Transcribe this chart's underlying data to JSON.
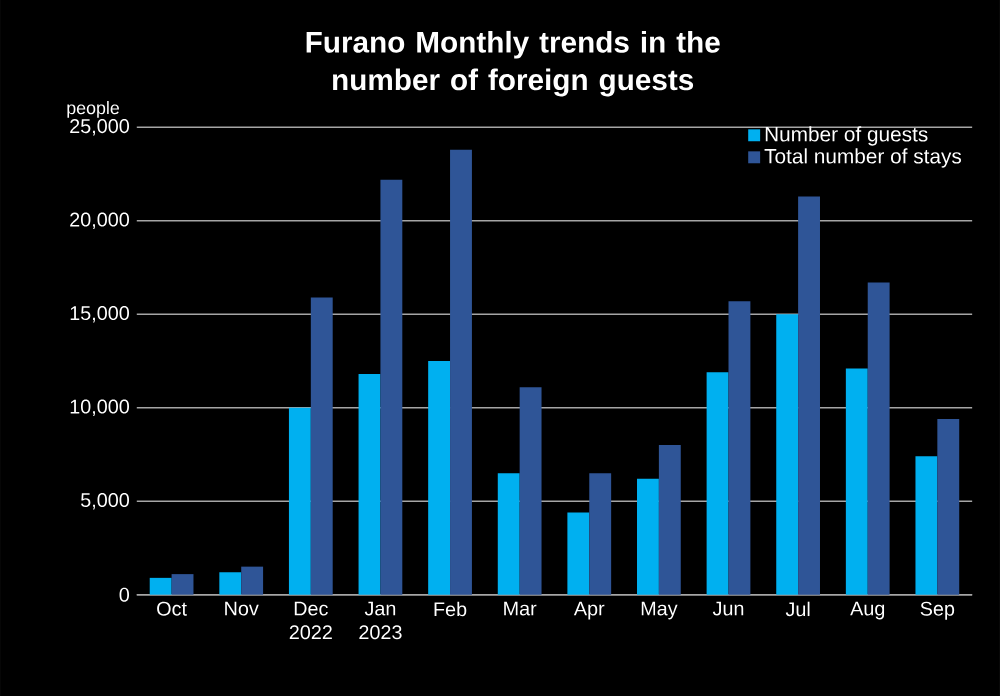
{
  "chart_data": {
    "type": "bar",
    "title": "Furano Monthly trends in the number of foreign guests",
    "ylabel": "people",
    "categories": [
      "Oct",
      "Nov",
      "Dec 2022",
      "Jan 2023",
      "Feb",
      "Mar",
      "Apr",
      "May",
      "Jun",
      "Jul",
      "Aug",
      "Sep"
    ],
    "series": [
      {
        "name": "Number of guests",
        "color": "#00b0f0",
        "values": [
          900,
          1200,
          10000,
          11800,
          12500,
          6500,
          4400,
          6200,
          11900,
          15000,
          12100,
          7400
        ]
      },
      {
        "name": "Total number of stays",
        "color": "#2f5597",
        "values": [
          1100,
          1500,
          15900,
          22200,
          23800,
          11100,
          6500,
          8000,
          15700,
          21300,
          16700,
          9400
        ]
      }
    ],
    "ylim": [
      0,
      25000
    ],
    "yticks": [
      {
        "value": 0,
        "label": "0"
      },
      {
        "value": 5000,
        "label": "5,000"
      },
      {
        "value": 10000,
        "label": "10,000"
      },
      {
        "value": 15000,
        "label": "15,000"
      },
      {
        "value": 20000,
        "label": "20,000"
      },
      {
        "value": 25000,
        "label": "25,000"
      }
    ],
    "grid": "y",
    "legend": "top right"
  }
}
